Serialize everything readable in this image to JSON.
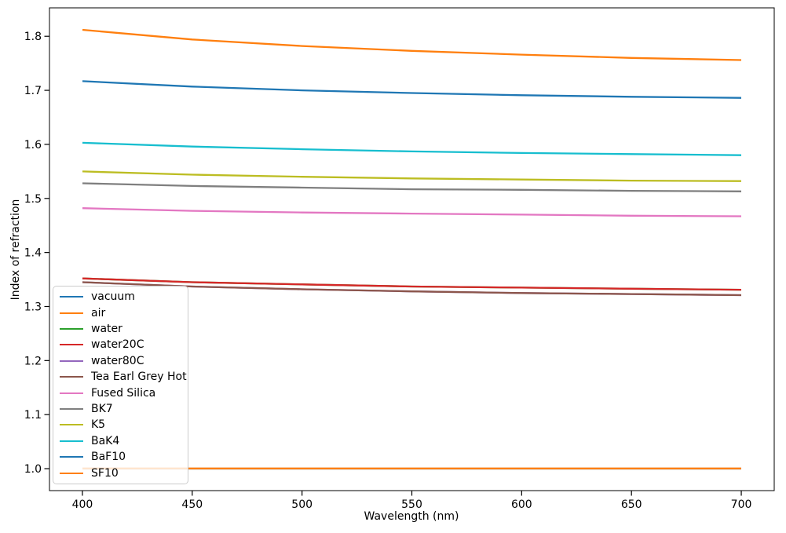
{
  "chart_data": {
    "type": "line",
    "title": "",
    "xlabel": "Wavelength (nm)",
    "ylabel": "Index of refraction",
    "grid": false,
    "legend_position": "lower-left",
    "xlim": [
      385,
      715
    ],
    "ylim": [
      0.9594,
      1.8526
    ],
    "x_ticks": [
      400,
      450,
      500,
      550,
      600,
      650,
      700
    ],
    "x_tick_labels": [
      "400",
      "450",
      "500",
      "550",
      "600",
      "650",
      "700"
    ],
    "y_ticks": [
      1.0,
      1.1,
      1.2,
      1.3,
      1.4,
      1.5,
      1.6,
      1.7,
      1.8
    ],
    "y_tick_labels": [
      "1.0",
      "1.1",
      "1.2",
      "1.3",
      "1.4",
      "1.5",
      "1.6",
      "1.7",
      "1.8"
    ],
    "x": [
      400,
      450,
      500,
      550,
      600,
      650,
      700
    ],
    "series": [
      {
        "name": "vacuum",
        "color": "#1f77b4",
        "values": [
          1.0,
          1.0,
          1.0,
          1.0,
          1.0,
          1.0,
          1.0
        ]
      },
      {
        "name": "air",
        "color": "#ff7f0e",
        "values": [
          1.0003,
          1.0003,
          1.0003,
          1.0003,
          1.0003,
          1.0003,
          1.0003
        ]
      },
      {
        "name": "water",
        "color": "#2ca02c",
        "values": [
          1.352,
          1.345,
          1.341,
          1.337,
          1.335,
          1.333,
          1.331
        ]
      },
      {
        "name": "water20C",
        "color": "#d62728",
        "values": [
          1.352,
          1.345,
          1.341,
          1.337,
          1.335,
          1.333,
          1.331
        ]
      },
      {
        "name": "water80C",
        "color": "#9467bd",
        "values": [
          1.345,
          1.337,
          1.332,
          1.328,
          1.325,
          1.323,
          1.321
        ]
      },
      {
        "name": "Tea Earl Grey Hot",
        "color": "#8c564b",
        "values": [
          1.345,
          1.337,
          1.332,
          1.328,
          1.325,
          1.323,
          1.321
        ]
      },
      {
        "name": "Fused Silica",
        "color": "#e377c2",
        "values": [
          1.482,
          1.477,
          1.474,
          1.472,
          1.47,
          1.468,
          1.467
        ]
      },
      {
        "name": "BK7",
        "color": "#7f7f7f",
        "values": [
          1.528,
          1.523,
          1.52,
          1.517,
          1.516,
          1.514,
          1.513
        ]
      },
      {
        "name": "K5",
        "color": "#bcbd22",
        "values": [
          1.55,
          1.544,
          1.54,
          1.537,
          1.535,
          1.533,
          1.532
        ]
      },
      {
        "name": "BaK4",
        "color": "#17becf",
        "values": [
          1.603,
          1.596,
          1.591,
          1.587,
          1.584,
          1.582,
          1.58
        ]
      },
      {
        "name": "BaF10",
        "color": "#1f77b4",
        "values": [
          1.717,
          1.707,
          1.7,
          1.695,
          1.691,
          1.688,
          1.686
        ]
      },
      {
        "name": "SF10",
        "color": "#ff7f0e",
        "values": [
          1.812,
          1.794,
          1.782,
          1.773,
          1.766,
          1.76,
          1.756
        ]
      }
    ],
    "axis_color": "#000000",
    "background_color": "#ffffff"
  }
}
